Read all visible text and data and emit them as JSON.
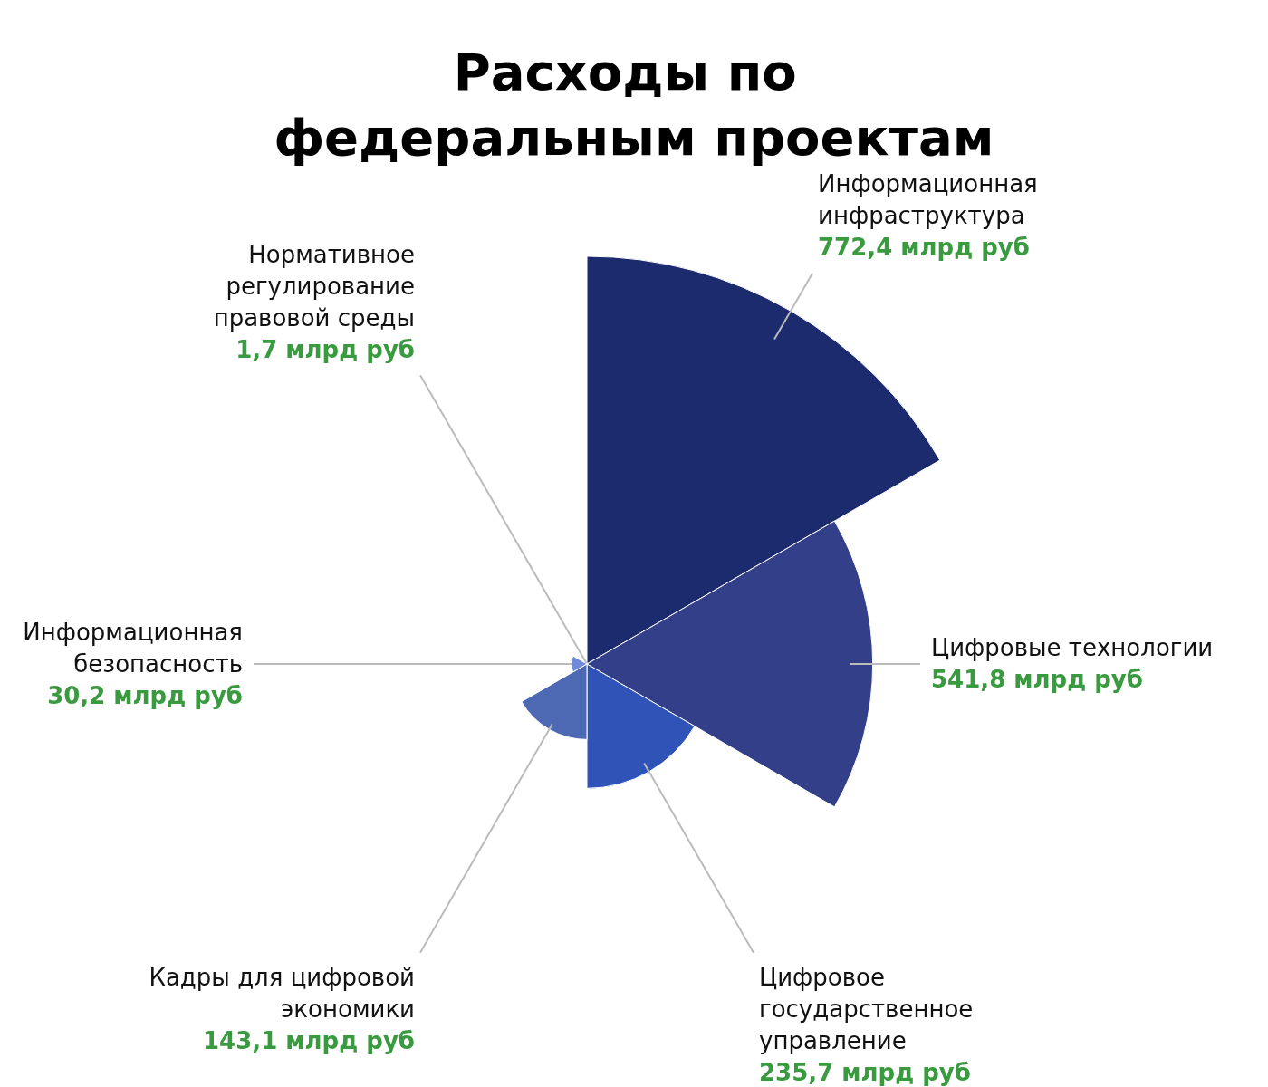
{
  "chart_data": {
    "type": "other",
    "title": "Расходы по федеральным проектам",
    "categories": [
      "Информационная инфраструктура",
      "Цифровые технологии",
      "Цифровое государственное управление",
      "Кадры для цифровой экономики",
      "Информационная безопасность",
      "Нормативное регулирование правовой среды"
    ],
    "values": [
      772.4,
      541.8,
      235.7,
      143.1,
      30.2,
      1.7
    ],
    "value_labels": [
      "772,4 млрд руб",
      "541,8 млрд руб",
      "235,7 млрд руб",
      "143,1 млрд руб",
      "30,2 млрд руб",
      "1,7 млрд руб"
    ],
    "colors": [
      "#1c2a6e",
      "#343f8a",
      "#2f53b7",
      "#4e69b3",
      "#7089d8",
      "#9fb0e6"
    ]
  }
}
